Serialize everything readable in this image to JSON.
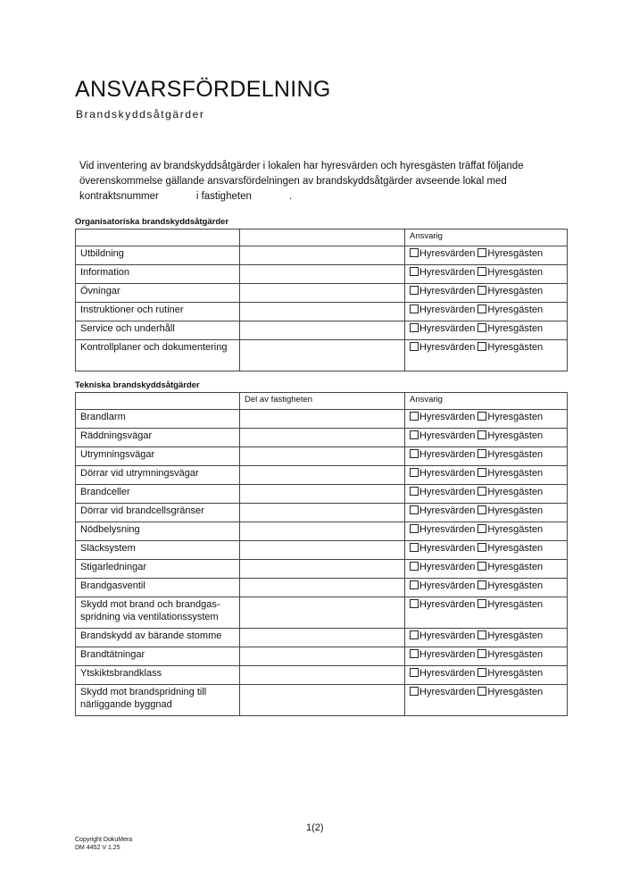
{
  "title": "ANSVARSFÖRDELNING",
  "subtitle": "Brandskyddsåtgärder",
  "intro": {
    "part1": "Vid inventering av brandskyddsåtgärder i lokalen har hyresvärden och hyresgästen träffat följande överenskommelse gällande ansvarsfördelningen av brandskyddsåtgärder avseende lokal med kontraktsnummer",
    "part2": "i fastigheten",
    "part3": "."
  },
  "options": {
    "landlord": "Hyresvärden",
    "tenant": "Hyresgästen"
  },
  "org": {
    "heading": "Organisatoriska brandskyddsåtgärder",
    "col2": "",
    "col3": "Ansvarig",
    "rows": [
      "Utbildning",
      "Information",
      "Övningar",
      "Instruktioner och rutiner",
      "Service och underhåll",
      "Kontrollplaner och dokumentering"
    ]
  },
  "tech": {
    "heading": "Tekniska brandskyddsåtgärder",
    "col2": "Del av fastigheten",
    "col3": "Ansvarig",
    "rows": [
      "Brandlarm",
      "Räddningsvägar",
      "Utrymningsvägar",
      "Dörrar vid utrymningsvägar",
      "Brandceller",
      "Dörrar vid brandcellsgränser",
      "Nödbelysning",
      "Släcksystem",
      "Stigarledningar",
      "Brandgasventil",
      "Skydd mot brand och brandgas-spridning via ventilationssystem",
      "Brandskydd av bärande stomme",
      "Brandtätningar",
      "Ytskiktsbrandklass",
      "Skydd mot brandspridning till närliggande byggnad"
    ]
  },
  "footer": {
    "page": "1(2)",
    "copyright": "Copyright DokuMera",
    "code": "DM 4452 V 1.25"
  }
}
